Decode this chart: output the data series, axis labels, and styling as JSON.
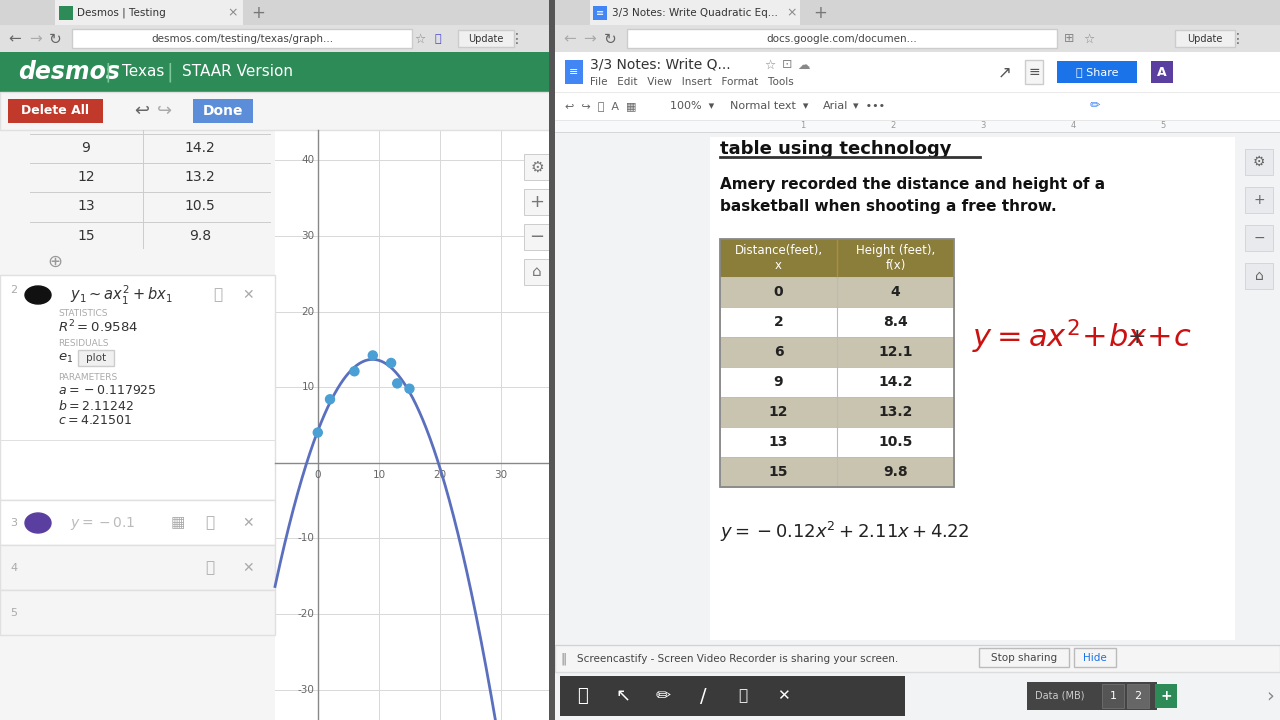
{
  "left_browser": {
    "tab_text": "Desmos | Testing",
    "url": "desmos.com/testing/texas/graph...",
    "header_color": "#2d8b57",
    "delete_btn_color": "#c0392b",
    "done_btn_color": "#5b8dd9",
    "table_data": [
      [
        9,
        14.2
      ],
      [
        12,
        13.2
      ],
      [
        13,
        10.5
      ],
      [
        15,
        9.8
      ]
    ],
    "quadratic_a": -0.117925,
    "quadratic_b": 2.11242,
    "quadratic_c": 4.21501,
    "data_points": [
      [
        0,
        4
      ],
      [
        2,
        8.4
      ],
      [
        6,
        12.1
      ],
      [
        9,
        14.2
      ],
      [
        12,
        13.2
      ],
      [
        13,
        10.5
      ],
      [
        15,
        9.8
      ]
    ],
    "curve_color": "#5b6fbf",
    "point_color": "#4a9fd4",
    "grid_color": "#d8d8d8",
    "axis_color": "#999999",
    "gx_min": -7,
    "gx_max": 38,
    "gy_min": -34,
    "gy_max": 44
  },
  "right_browser": {
    "tab_text": "3/3 Notes: Write Quadratic Eq...",
    "url": "docs.google.com/documen...",
    "doc_title": "3/3 Notes: Write Q...",
    "header_text_line1": "Amery recorded the distance and height of a",
    "header_text_line2": "basketball when shooting a free throw.",
    "table_header_bg": "#8b7d3a",
    "table_row_bg_odd": "#c8c4b0",
    "table_row_bg_even": "#ffffff",
    "col1_header": "Distance(feet),\nx",
    "col2_header": "Height (feet),\nf(x)",
    "table_data": [
      [
        0,
        4
      ],
      [
        2,
        8.4
      ],
      [
        6,
        12.1
      ],
      [
        9,
        14.2
      ],
      [
        12,
        13.2
      ],
      [
        13,
        10.5
      ],
      [
        15,
        9.8
      ]
    ],
    "handwritten_color": "#cc1111",
    "bottom_eq": "y= -0.12x² + 2.11x + 4.22",
    "screencastify_text": "Screencastify - Screen Video Recorder is sharing your screen.",
    "stop_sharing_text": "Stop sharing",
    "hide_text": "Hide"
  }
}
